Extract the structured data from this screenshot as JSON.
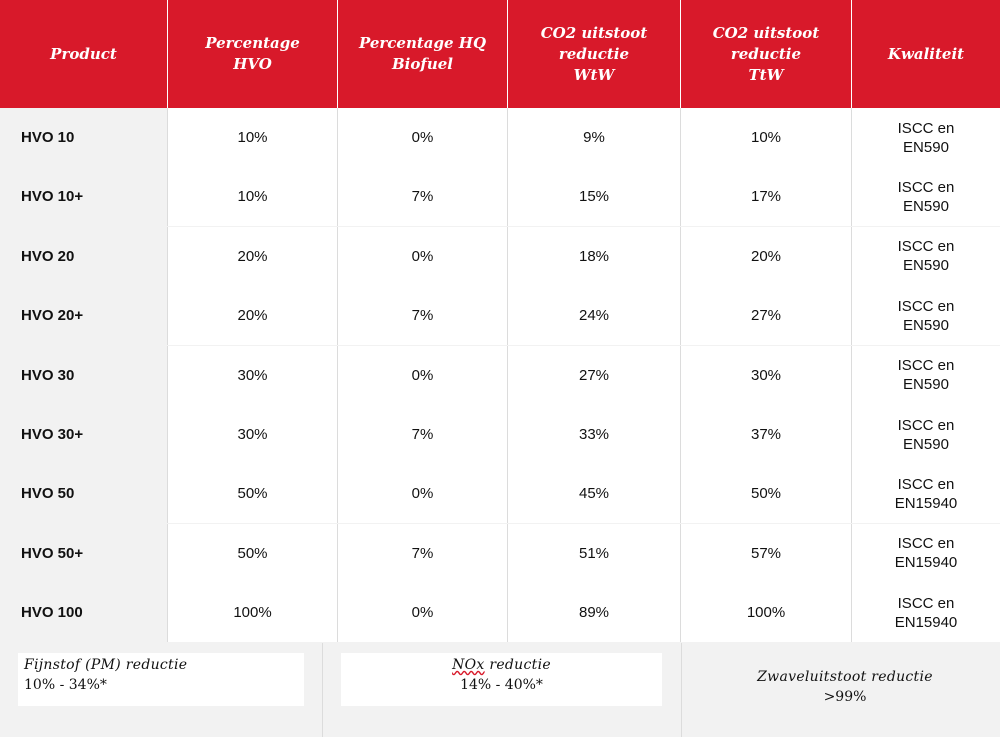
{
  "header": {
    "columns": [
      "Product",
      "Percentage\nHVO",
      "Percentage HQ\nBiofuel",
      "CO2 uitstoot\nreductie\nWtW",
      "CO2 uitstoot\nreductie\nTtW",
      "Kwaliteit"
    ]
  },
  "rows": [
    {
      "product": "HVO 10",
      "hvo": "10%",
      "hq": "0%",
      "wtw": "9%",
      "ttw": "10%",
      "kwaliteit": "ISCC en\nEN590"
    },
    {
      "product": "HVO 10+",
      "hvo": "10%",
      "hq": "7%",
      "wtw": "15%",
      "ttw": "17%",
      "kwaliteit": "ISCC en\nEN590"
    },
    {
      "product": "HVO 20",
      "hvo": "20%",
      "hq": "0%",
      "wtw": "18%",
      "ttw": "20%",
      "kwaliteit": "ISCC en\nEN590"
    },
    {
      "product": "HVO 20+",
      "hvo": "20%",
      "hq": "7%",
      "wtw": "24%",
      "ttw": "27%",
      "kwaliteit": "ISCC en\nEN590"
    },
    {
      "product": "HVO 30",
      "hvo": "30%",
      "hq": "0%",
      "wtw": "27%",
      "ttw": "30%",
      "kwaliteit": "ISCC en\nEN590"
    },
    {
      "product": "HVO 30+",
      "hvo": "30%",
      "hq": "7%",
      "wtw": "33%",
      "ttw": "37%",
      "kwaliteit": "ISCC en\nEN590"
    },
    {
      "product": "HVO 50",
      "hvo": "50%",
      "hq": "0%",
      "wtw": "45%",
      "ttw": "50%",
      "kwaliteit": "ISCC en\nEN15940"
    },
    {
      "product": "HVO 50+",
      "hvo": "50%",
      "hq": "7%",
      "wtw": "51%",
      "ttw": "57%",
      "kwaliteit": "ISCC en\nEN15940"
    },
    {
      "product": "HVO 100",
      "hvo": "100%",
      "hq": "0%",
      "wtw": "89%",
      "ttw": "100%",
      "kwaliteit": "ISCC en\nEN15940"
    }
  ],
  "footer": {
    "fijnstof": {
      "label": "Fijnstof (PM) reductie",
      "value": "10% - 34%*"
    },
    "nox": {
      "label": "NOx",
      "label_suffix": " reductie",
      "value": "14% - 40%*"
    },
    "zwavel": {
      "label": "Zwaveluitstoot reductie",
      "value": ">99%"
    }
  },
  "colors": {
    "header_bg": "#d8192a",
    "header_text": "#ffffff",
    "grid": "#dcdcdc",
    "first_col_bg": "#f2f2f2"
  }
}
